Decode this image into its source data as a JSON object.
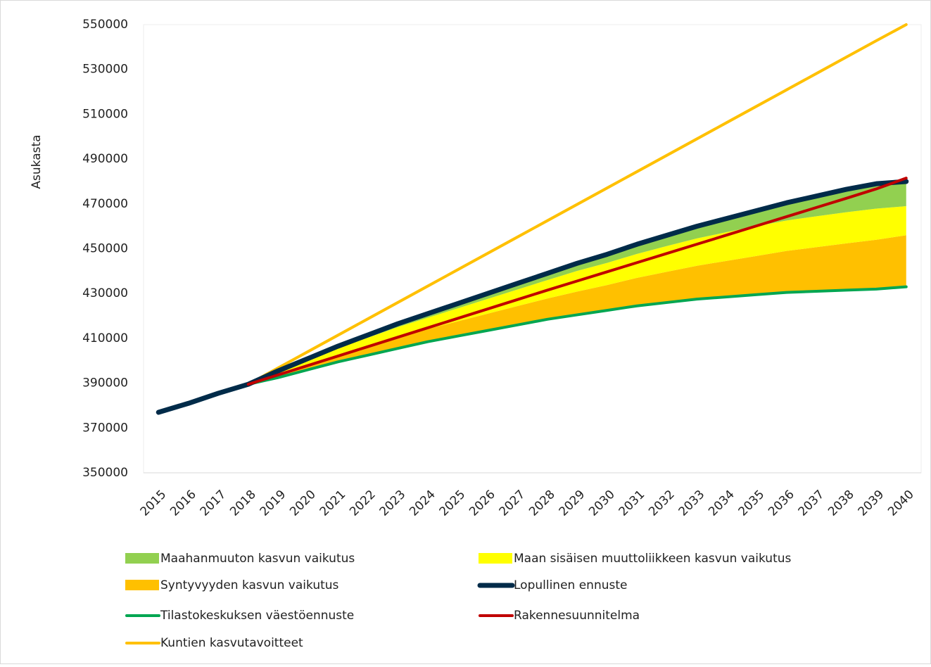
{
  "chart_data": {
    "type": "area-line",
    "y_label": "Asukasta",
    "categories": [
      "2015",
      "2016",
      "2017",
      "2018",
      "2019",
      "2020",
      "2021",
      "2022",
      "2023",
      "2024",
      "2025",
      "2026",
      "2027",
      "2028",
      "2029",
      "2030",
      "2031",
      "2032",
      "2033",
      "2034",
      "2035",
      "2036",
      "2037",
      "2038",
      "2039",
      "2040"
    ],
    "ylim": [
      350000,
      550000
    ],
    "yticks": [
      350000,
      370000,
      390000,
      410000,
      430000,
      450000,
      470000,
      490000,
      510000,
      530000,
      550000
    ],
    "grid": false,
    "series": [
      {
        "name": "Maahanmuuton kasvun vaikutus",
        "type": "area",
        "color": "#92d050",
        "values": [
          null,
          null,
          null,
          0,
          300,
          600,
          900,
          1200,
          1500,
          1800,
          2100,
          2400,
          2700,
          3000,
          3400,
          3800,
          4300,
          4800,
          5400,
          6100,
          6900,
          7900,
          9000,
          10200,
          11100,
          11000
        ]
      },
      {
        "name": "Maan sisäisen muuttoliikkeen kasvun vaikutus",
        "type": "area",
        "color": "#ffff00",
        "values": [
          null,
          null,
          null,
          0,
          1200,
          2000,
          2800,
          3600,
          4500,
          5000,
          5800,
          6600,
          7400,
          8200,
          9200,
          9900,
          10700,
          11500,
          12200,
          12800,
          13300,
          13600,
          13800,
          13900,
          13900,
          13000
        ]
      },
      {
        "name": "Syntyvyyden kasvun vaikutus",
        "type": "area",
        "color": "#ffc000",
        "values": [
          null,
          null,
          null,
          0,
          1500,
          2400,
          3300,
          4200,
          5000,
          5700,
          6600,
          7500,
          8400,
          9300,
          10400,
          11300,
          12500,
          13700,
          14900,
          16100,
          17300,
          18500,
          19700,
          20900,
          22000,
          23000
        ]
      },
      {
        "name": "Lopullinen ennuste",
        "type": "line",
        "color": "#002b49",
        "width": 7,
        "values": [
          377000,
          381000,
          385500,
          389500,
          395500,
          401000,
          406500,
          411500,
          416500,
          421000,
          425500,
          430000,
          434500,
          439000,
          443500,
          447500,
          452000,
          456000,
          460000,
          463500,
          467000,
          470500,
          473500,
          476500,
          479000,
          480000
        ]
      },
      {
        "name": "Tilastokeskuksen väestöennuste",
        "type": "line",
        "color": "#00a651",
        "width": 4,
        "values": [
          null,
          null,
          null,
          389500,
          392500,
          396000,
          399500,
          402500,
          405500,
          408500,
          411000,
          413500,
          416000,
          418500,
          420500,
          422500,
          424500,
          426000,
          427500,
          428500,
          429500,
          430500,
          431000,
          431500,
          432000,
          433000
        ]
      },
      {
        "name": "Rakennesuunnitelma",
        "type": "line",
        "color": "#c00000",
        "width": 4,
        "values": [
          null,
          null,
          null,
          389500,
          393700,
          397900,
          402100,
          406300,
          410500,
          414700,
          418900,
          423100,
          427300,
          431500,
          435600,
          439700,
          443800,
          447900,
          452000,
          456100,
          460200,
          464300,
          468400,
          472500,
          476700,
          481500
        ]
      },
      {
        "name": "Kuntien kasvutavoitteet",
        "type": "line",
        "color": "#ffc000",
        "width": 4,
        "values": [
          null,
          null,
          null,
          389500,
          396800,
          404100,
          411400,
          418700,
          426000,
          433300,
          440600,
          447900,
          455200,
          462500,
          469800,
          477100,
          484400,
          491700,
          499000,
          506300,
          513600,
          520900,
          528200,
          535500,
          542800,
          550000
        ]
      }
    ]
  }
}
